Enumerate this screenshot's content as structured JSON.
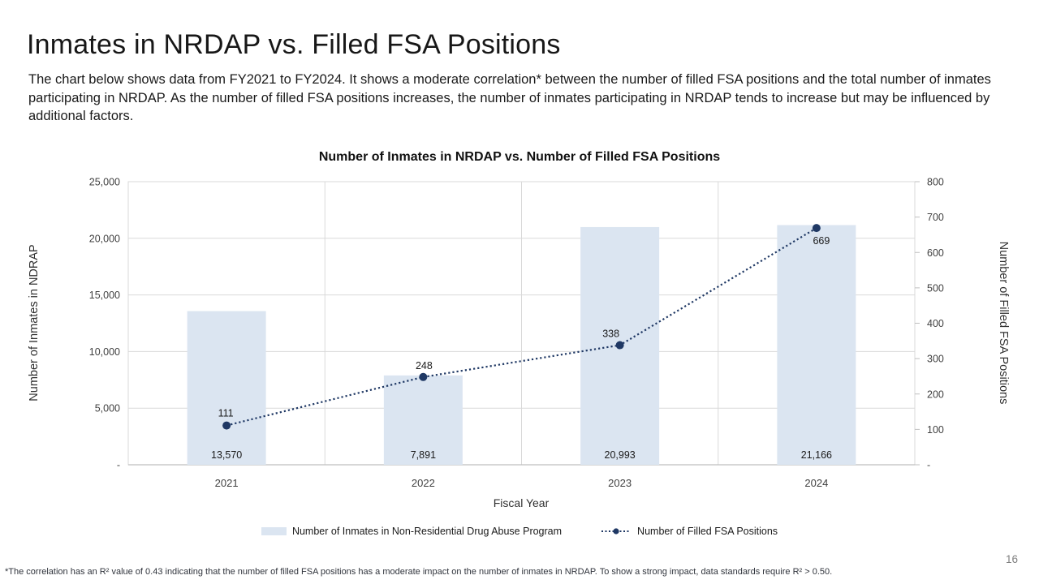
{
  "slide": {
    "title": "Inmates in NRDAP vs. Filled FSA Positions",
    "body": "The chart below shows data from FY2021 to FY2024. It shows a moderate correlation* between the number of filled FSA positions and the total number of inmates participating in NRDAP. As the number of filled FSA positions increases, the number of inmates participating in NRDAP tends to increase but may be influenced by additional factors.",
    "footnote": "*The correlation has an R² value of 0.43 indicating that the number of filled FSA positions has a moderate impact on the number of inmates in NRDAP. To show a strong impact, data standards require R² > 0.50.",
    "page_number": "16"
  },
  "chart_data": {
    "type": "bar",
    "subtype": "combo-bar-line-dual-axis",
    "title": "Number of Inmates in NRDAP vs. Number of Filled FSA Positions",
    "categories": [
      "2021",
      "2022",
      "2023",
      "2024"
    ],
    "series": [
      {
        "name": "Number of Inmates in Non-Residential Drug Abuse Program",
        "type": "bar",
        "axis": "left",
        "values": [
          13570,
          7891,
          20993,
          21166
        ],
        "labels": [
          "13,570",
          "7,891",
          "20,993",
          "21,166"
        ],
        "color": "#dbe5f1"
      },
      {
        "name": "Number of Filled FSA Positions",
        "type": "line",
        "axis": "right",
        "line_style": "dotted",
        "marker": "circle",
        "values": [
          111,
          248,
          338,
          669
        ],
        "labels": [
          "111",
          "248",
          "338",
          "669"
        ],
        "color": "#1f3864"
      }
    ],
    "xlabel": "Fiscal Year",
    "left_axis": {
      "label": "Number of Inmates in NDRAP",
      "min": 0,
      "max": 25000,
      "step": 5000,
      "tick_labels": [
        "-",
        "5,000",
        "10,000",
        "15,000",
        "20,000",
        "25,000"
      ]
    },
    "right_axis": {
      "label": "Number of Filled FSA Positions",
      "min": 0,
      "max": 800,
      "step": 100,
      "tick_labels": [
        "-",
        "100",
        "200",
        "300",
        "400",
        "500",
        "600",
        "700",
        "800"
      ]
    },
    "grid": true,
    "legend_position": "bottom",
    "colors": {
      "grid": "#d9d9d9",
      "axis_line": "#bfbfbf",
      "tick_text": "#404040",
      "label_text": "#1a1a1a",
      "axis_title_text": "#303030"
    }
  }
}
